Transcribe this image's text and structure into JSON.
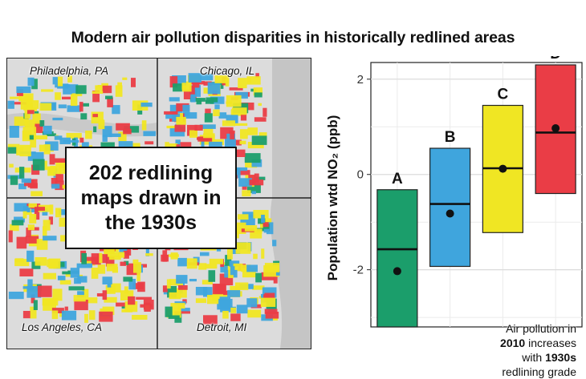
{
  "title": "Modern air pollution disparities in historically redlined areas",
  "maps": {
    "cities": [
      "Philadelphia, PA",
      "Chicago, IL",
      "Los Angeles, CA",
      "Detroit, MI"
    ],
    "center_text": [
      "202 redlining",
      "maps drawn in",
      "the 1930s"
    ],
    "grade_colors": {
      "A": "#1b9e6b",
      "B": "#3fa5dd",
      "C": "#f0e623",
      "D": "#ea3d46"
    }
  },
  "annotation": {
    "line1": "Air pollution in",
    "line2_bold": "2010",
    "line2_rest": " increases",
    "line3_pre": "with ",
    "line3_bold": "1930s",
    "line4": "redlining grade"
  },
  "chart_data": {
    "type": "crossbar",
    "ylabel": "Population wtd NO₂ (ppb)",
    "yticks": [
      -2,
      0,
      2
    ],
    "ylim": [
      -3.2,
      2.35
    ],
    "grid": true,
    "categories": [
      "A",
      "B",
      "C",
      "D"
    ],
    "colors": [
      "#1b9e6b",
      "#3fa5dd",
      "#f0e623",
      "#ea3d46"
    ],
    "box_low": [
      -3.2,
      -1.93,
      -1.22,
      -0.4
    ],
    "box_high": [
      -0.32,
      0.55,
      1.45,
      2.3
    ],
    "median": [
      -1.57,
      -0.62,
      0.13,
      0.88
    ],
    "mean": [
      -2.03,
      -0.82,
      0.12,
      0.97
    ]
  }
}
